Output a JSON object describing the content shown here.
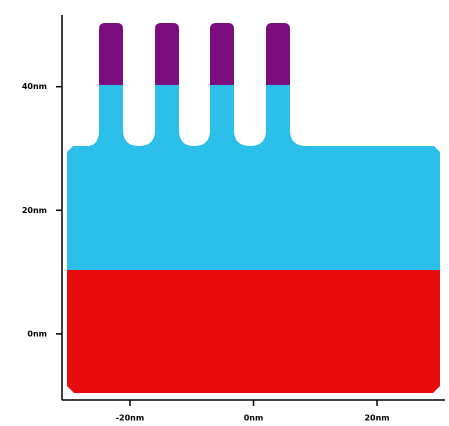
{
  "chart_data": {
    "type": "geometry",
    "xlim": [
      -31,
      31
    ],
    "ylim": [
      -10.7,
      51.6
    ],
    "xticks": [
      {
        "value": -20,
        "label": "-20nm"
      },
      {
        "value": 0,
        "label": "0nm"
      },
      {
        "value": 20,
        "label": "20nm"
      }
    ],
    "yticks": [
      {
        "value": 0,
        "label": "0nm"
      },
      {
        "value": 20,
        "label": "20nm"
      },
      {
        "value": 40,
        "label": "40nm"
      }
    ]
  }
}
